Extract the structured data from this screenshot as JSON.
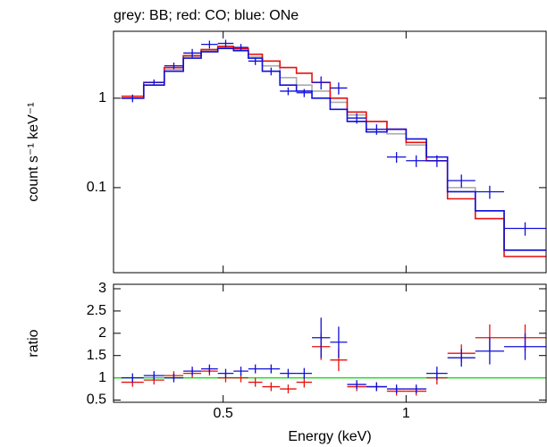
{
  "chart_data": [
    {
      "type": "step",
      "title": "grey: BB; red: CO; blue: ONe",
      "ylabel": "count s⁻¹ keV⁻¹",
      "xlog": true,
      "ylog": true,
      "xlim": [
        0.33,
        1.7
      ],
      "ylim": [
        0.0112,
        5.6
      ],
      "yticks": [
        0.1,
        1
      ],
      "bins": [
        0.34,
        0.37,
        0.4,
        0.43,
        0.46,
        0.49,
        0.52,
        0.55,
        0.58,
        0.62,
        0.66,
        0.7,
        0.75,
        0.8,
        0.86,
        0.93,
        1.0,
        1.08,
        1.17,
        1.3,
        1.45,
        1.7
      ],
      "models": [
        {
          "color": "#aaaaaa",
          "values": [
            1.0,
            1.4,
            2.1,
            2.9,
            3.4,
            3.7,
            3.5,
            2.9,
            2.3,
            1.7,
            1.4,
            1.2,
            0.9,
            0.65,
            0.55,
            0.4,
            0.3,
            0.2,
            0.1,
            0.055,
            0.02
          ]
        },
        {
          "color": "#e8110f",
          "values": [
            1.05,
            1.5,
            2.2,
            3.0,
            3.5,
            3.8,
            3.6,
            3.1,
            2.6,
            2.2,
            1.9,
            1.5,
            1.0,
            0.7,
            0.55,
            0.45,
            0.32,
            0.2,
            0.075,
            0.045,
            0.017
          ]
        },
        {
          "color": "#1010d8",
          "values": [
            1.0,
            1.4,
            2.0,
            2.8,
            3.3,
            3.6,
            3.4,
            2.8,
            2.0,
            1.4,
            1.2,
            1.0,
            0.75,
            0.55,
            0.42,
            0.45,
            0.35,
            0.22,
            0.09,
            0.055,
            0.02
          ]
        }
      ],
      "data": {
        "color": "#1010d8",
        "values": [
          1.0,
          1.5,
          2.3,
          3.2,
          4.0,
          4.1,
          3.7,
          2.6,
          2.0,
          1.2,
          1.15,
          1.5,
          1.3,
          0.6,
          0.45,
          0.22,
          0.2,
          0.2,
          0.12,
          0.09,
          0.035
        ],
        "errors": [
          0.1,
          0.12,
          0.2,
          0.35,
          0.4,
          0.4,
          0.35,
          0.25,
          0.2,
          0.12,
          0.12,
          0.25,
          0.2,
          0.08,
          0.06,
          0.03,
          0.03,
          0.03,
          0.02,
          0.015,
          0.006
        ]
      }
    },
    {
      "type": "ratio",
      "ylabel": "ratio",
      "xlabel": "Energy (keV)",
      "xticks": [
        0.5,
        1
      ],
      "ylim": [
        0.45,
        3.1
      ],
      "yticks": [
        0.5,
        1,
        1.5,
        2,
        2.5,
        3
      ],
      "reference": {
        "value": 1,
        "color": "#22dd22"
      },
      "series": [
        {
          "color": "#e8110f",
          "values": [
            0.9,
            0.95,
            1.05,
            1.1,
            1.15,
            1.0,
            1.0,
            0.9,
            0.8,
            0.75,
            0.9,
            1.7,
            1.4,
            0.8,
            0.8,
            0.7,
            0.7,
            1.0,
            1.55,
            1.9,
            1.9
          ],
          "errors": [
            0.1,
            0.1,
            0.1,
            0.1,
            0.1,
            0.1,
            0.1,
            0.1,
            0.1,
            0.1,
            0.12,
            0.3,
            0.25,
            0.1,
            0.1,
            0.1,
            0.1,
            0.15,
            0.2,
            0.3,
            0.3
          ]
        },
        {
          "color": "#1010d8",
          "values": [
            1.0,
            1.05,
            1.0,
            1.15,
            1.2,
            1.1,
            1.15,
            1.2,
            1.2,
            1.1,
            1.1,
            1.9,
            1.8,
            0.85,
            0.8,
            0.75,
            0.75,
            1.1,
            1.45,
            1.6,
            1.7
          ],
          "errors": [
            0.1,
            0.1,
            0.1,
            0.1,
            0.1,
            0.1,
            0.1,
            0.1,
            0.1,
            0.1,
            0.12,
            0.45,
            0.35,
            0.1,
            0.1,
            0.1,
            0.1,
            0.15,
            0.2,
            0.3,
            0.3
          ]
        }
      ]
    }
  ]
}
